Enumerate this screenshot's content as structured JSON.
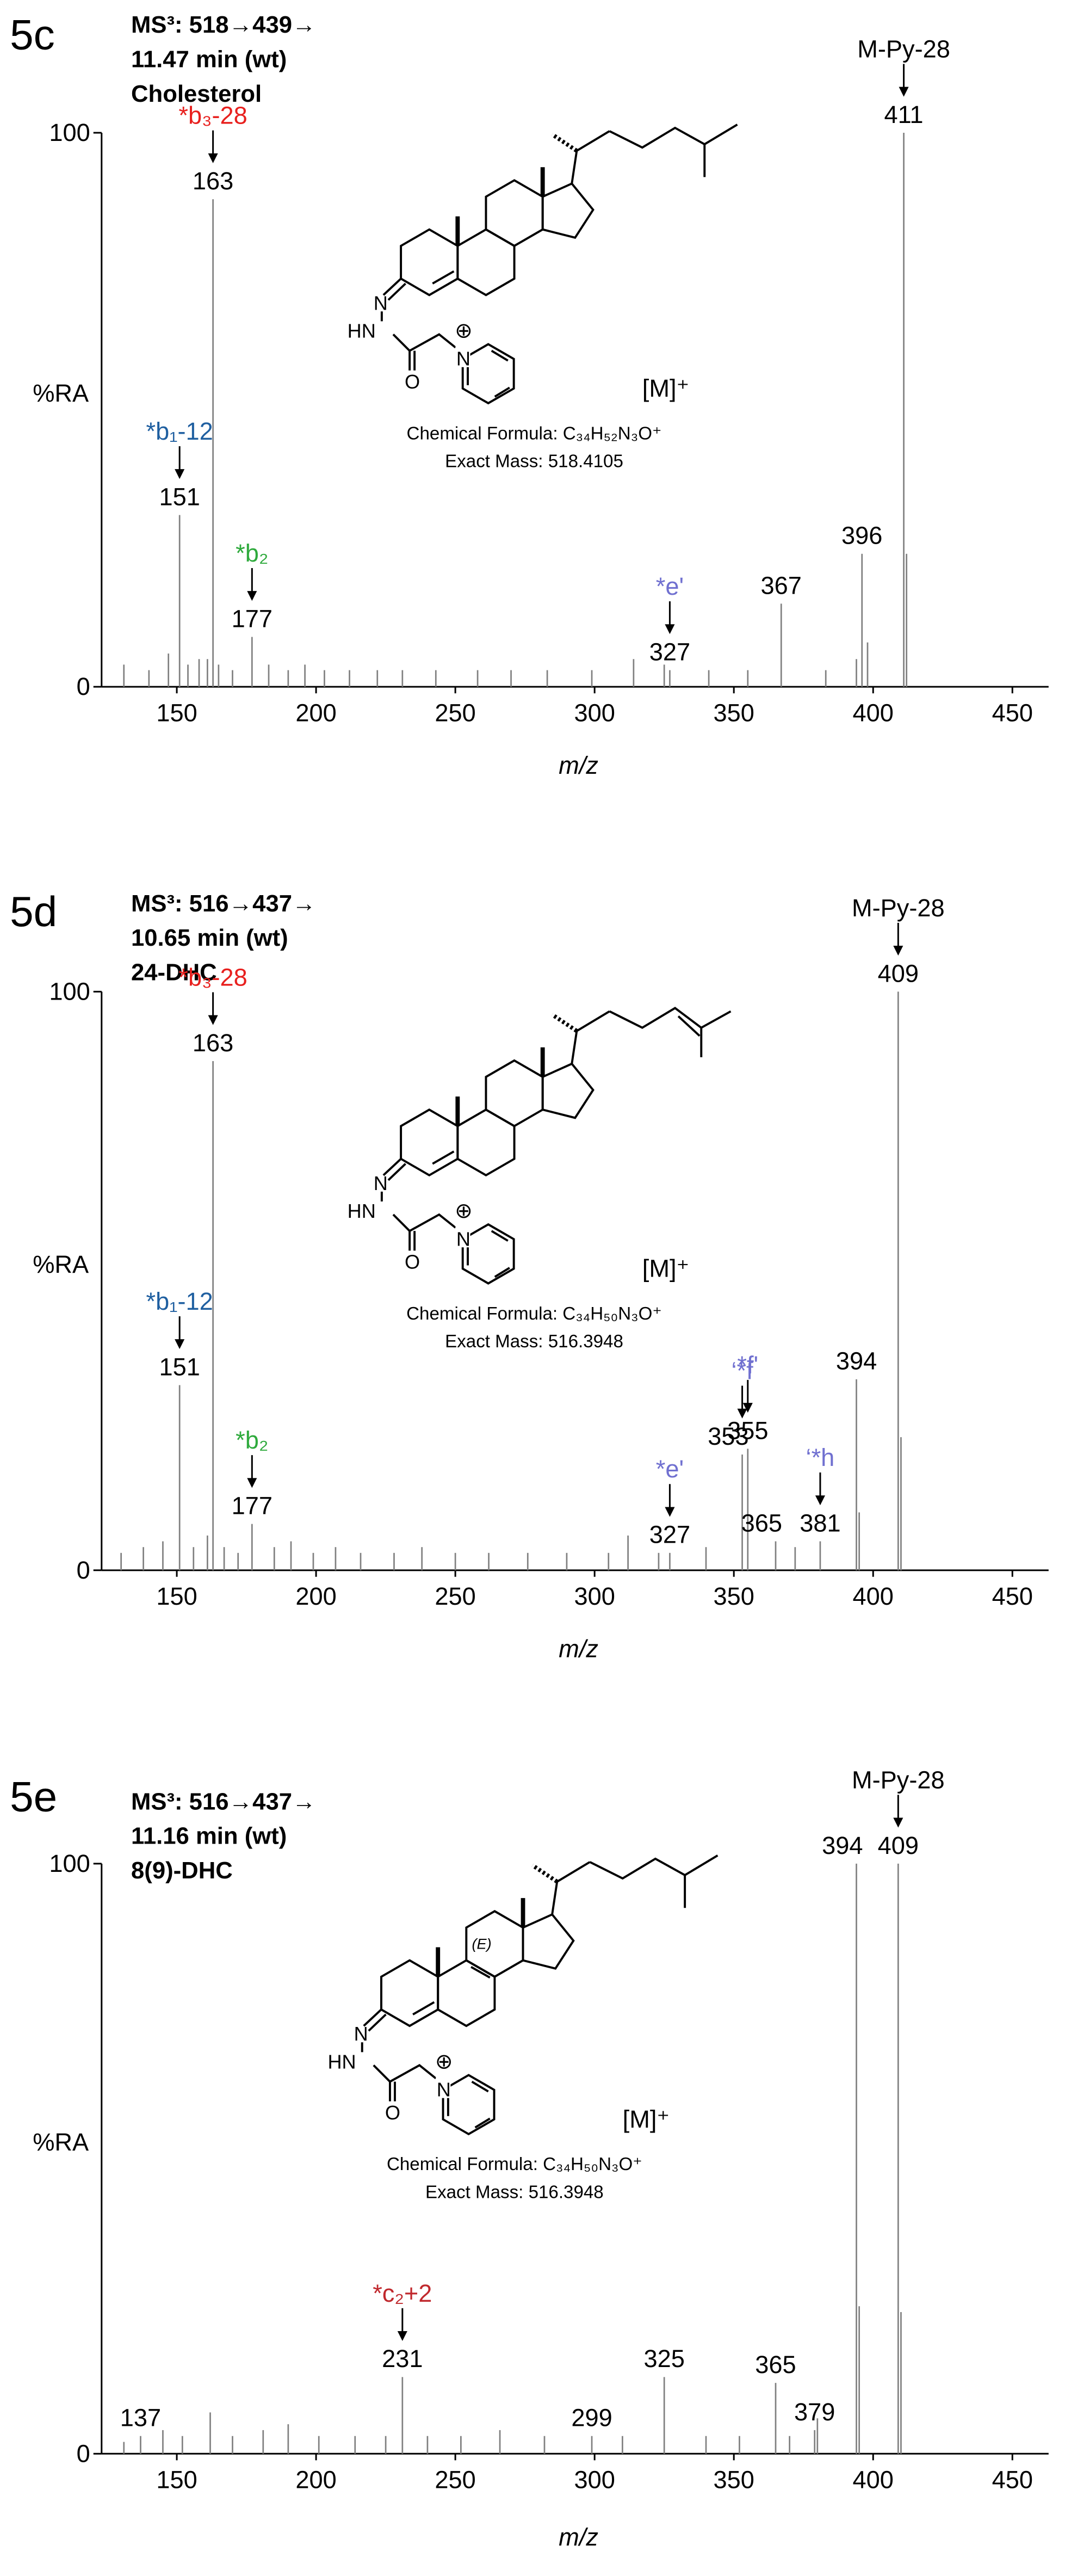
{
  "structure_atoms": {
    "imine": "N",
    "hydrazide": "HN",
    "carbonyl": "O",
    "pyridinium": "N",
    "charge": "⊕"
  },
  "chart_data": [
    {
      "type": "spectrum",
      "panel": "5c",
      "title_lines": [
        "MS³: 518→439→",
        "11.47 min (wt)",
        "Cholesterol"
      ],
      "xlabel": "m/z",
      "ylabel": "%RA",
      "xlim": [
        123,
        463
      ],
      "xticks": [
        150,
        200,
        250,
        300,
        350,
        400,
        450
      ],
      "ylim": [
        0,
        100
      ],
      "yticks": [
        0,
        100
      ],
      "color": "#808080",
      "x": [
        131,
        140,
        147,
        151,
        154,
        158,
        161,
        163,
        165,
        170,
        177,
        183,
        190,
        196,
        203,
        212,
        222,
        231,
        243,
        258,
        270,
        283,
        299,
        314,
        325,
        327,
        341,
        355,
        367,
        383,
        394,
        396,
        398,
        411,
        412
      ],
      "values": [
        4,
        3,
        6,
        31,
        4,
        5,
        5,
        88,
        4,
        3,
        9,
        4,
        3,
        4,
        3,
        3,
        3,
        3,
        3,
        3,
        3,
        3,
        3,
        5,
        4,
        3,
        3,
        3,
        15,
        3,
        5,
        24,
        8,
        100,
        24
      ],
      "labels": [
        {
          "value": 151,
          "annotation": "*b₁-12",
          "color": "#1f5fa0"
        },
        {
          "value": 163,
          "annotation": "*b₃-28",
          "color": "#e8201e"
        },
        {
          "value": 177,
          "annotation": "*b₂",
          "color": "#2eaa3c"
        },
        {
          "value": 327,
          "annotation": "*e'",
          "color": "#7070d0"
        },
        {
          "value": 367
        },
        {
          "value": 396
        },
        {
          "value": 411,
          "annotation": "M-Py-28",
          "color": "#000000"
        }
      ],
      "structure": {
        "ion": "[M]⁺",
        "formula": "Chemical Formula: C₃₄H₅₂N₃O⁺",
        "mass": "Exact Mass: 518.4105"
      }
    },
    {
      "type": "spectrum",
      "panel": "5d",
      "title_lines": [
        "MS³: 516→437→",
        "10.65 min (wt)",
        "24-DHC"
      ],
      "xlabel": "m/z",
      "ylabel": "%RA",
      "xlim": [
        123,
        463
      ],
      "xticks": [
        150,
        200,
        250,
        300,
        350,
        400,
        450
      ],
      "ylim": [
        0,
        100
      ],
      "yticks": [
        0,
        100
      ],
      "color": "#808080",
      "x": [
        130,
        138,
        145,
        151,
        156,
        161,
        163,
        167,
        172,
        177,
        185,
        191,
        199,
        207,
        216,
        228,
        238,
        250,
        262,
        276,
        290,
        305,
        312,
        323,
        327,
        340,
        353,
        355,
        365,
        372,
        381,
        394,
        395,
        409,
        410
      ],
      "values": [
        3,
        4,
        5,
        32,
        4,
        6,
        88,
        4,
        3,
        8,
        4,
        5,
        3,
        4,
        3,
        3,
        4,
        3,
        3,
        3,
        3,
        3,
        6,
        3,
        3,
        4,
        20,
        21,
        5,
        4,
        5,
        33,
        10,
        100,
        23
      ],
      "labels": [
        {
          "value": 151,
          "annotation": "*b₁-12",
          "color": "#1f5fa0"
        },
        {
          "value": 163,
          "annotation": "*b₃-28",
          "color": "#e8201e"
        },
        {
          "value": 177,
          "annotation": "*b₂",
          "color": "#2eaa3c"
        },
        {
          "value": 327,
          "annotation": "*e'",
          "color": "#7070d0"
        },
        {
          "value": 353,
          "annotation": "‘*f",
          "color": "#7070d0"
        },
        {
          "value": 355,
          "annotation": "*f'",
          "color": "#7070d0"
        },
        {
          "value": 365
        },
        {
          "value": 381,
          "annotation": "‘*h",
          "color": "#7070d0"
        },
        {
          "value": 394
        },
        {
          "value": 409,
          "annotation": "M-Py-28",
          "color": "#000000"
        }
      ],
      "structure": {
        "ion": "[M]⁺",
        "formula": "Chemical Formula: C₃₄H₅₀N₃O⁺",
        "mass": "Exact Mass: 516.3948"
      }
    },
    {
      "type": "spectrum",
      "panel": "5e",
      "title_lines": [
        "MS³: 516→437→",
        "11.16 min (wt)",
        "8(9)-DHC"
      ],
      "xlabel": "m/z",
      "ylabel": "%RA",
      "xlim": [
        123,
        463
      ],
      "xticks": [
        150,
        200,
        250,
        300,
        350,
        400,
        450
      ],
      "ylim": [
        0,
        100
      ],
      "yticks": [
        0,
        100
      ],
      "color": "#808080",
      "x": [
        131,
        137,
        145,
        152,
        162,
        170,
        181,
        190,
        201,
        214,
        225,
        231,
        240,
        252,
        266,
        282,
        299,
        310,
        325,
        340,
        352,
        365,
        370,
        379,
        380,
        394,
        395,
        409,
        410
      ],
      "values": [
        2,
        3,
        4,
        3,
        7,
        3,
        4,
        5,
        3,
        3,
        3,
        13,
        3,
        3,
        4,
        3,
        3,
        3,
        13,
        3,
        3,
        12,
        3,
        4,
        6,
        100,
        25,
        100,
        24
      ],
      "labels": [
        {
          "value": 137
        },
        {
          "value": 231,
          "annotation": "*c₂+2",
          "color": "#c0282d"
        },
        {
          "value": 299
        },
        {
          "value": 325
        },
        {
          "value": 365
        },
        {
          "value": 379
        },
        {
          "value": 394
        },
        {
          "value": 409,
          "annotation": "M-Py-28",
          "color": "#000000"
        }
      ],
      "structure": {
        "ion": "[M]⁺",
        "formula": "Chemical Formula: C₃₄H₅₀N₃O⁺",
        "mass": "Exact Mass: 516.3948",
        "stereo": "(E)"
      }
    }
  ]
}
